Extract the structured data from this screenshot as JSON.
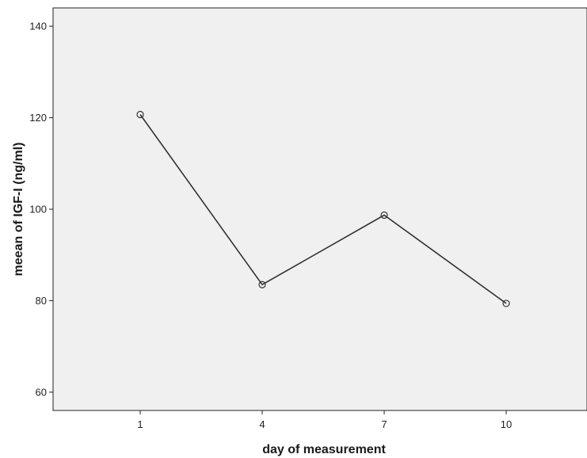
{
  "chart_data": {
    "type": "line",
    "title": "",
    "xlabel": "day of measurement",
    "ylabel": "meean of IGF-I (ng/ml)",
    "categories": [
      "1",
      "4",
      "7",
      "10"
    ],
    "series": [
      {
        "values": [
          120.7,
          83.5,
          98.7,
          79.4
        ],
        "marker": "open-circle",
        "color": "#333333"
      }
    ],
    "ylim": [
      56,
      144
    ],
    "yticks": [
      60,
      80,
      100,
      120,
      140
    ],
    "grid": false,
    "legend": "none",
    "plot_background": "#f0f0f0"
  }
}
